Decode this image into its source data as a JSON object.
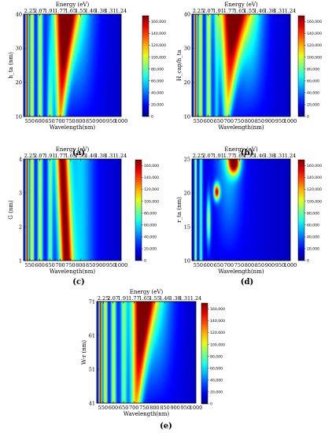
{
  "chart_data": [
    {
      "type": "heatmap",
      "panel": "(a)",
      "ylabel": "h_ta (nm)",
      "xlabel": "Wavelength(nm)",
      "x2label": "Energy (eV)",
      "xlim": [
        520,
        1000
      ],
      "ylim": [
        10,
        40
      ],
      "xticks": [
        550,
        600,
        650,
        700,
        750,
        800,
        850,
        900,
        950,
        1000
      ],
      "yticks": [
        10,
        20,
        30,
        40
      ],
      "energy_ticks": [
        "2.25",
        "2.07",
        "1.91",
        "1.77",
        "1.65",
        "1.55",
        "1.46",
        "1.38",
        "1.31",
        "1.24"
      ],
      "colorbar_ticks": [
        "0",
        "20,000",
        "40,000",
        "60,000",
        "80,000",
        "100,000",
        "120,000",
        "140,000",
        "160,000"
      ],
      "zmax": 170000,
      "peak_wavelength_nm": [
        720,
        740
      ]
    },
    {
      "type": "heatmap",
      "panel": "(b)",
      "ylabel": "H_cap/h_ta",
      "xlabel": "Wavelength(nm)",
      "x2label": "Energy (eV)",
      "xlim": [
        520,
        1000
      ],
      "ylim": [
        10,
        40
      ],
      "xticks": [
        550,
        600,
        650,
        700,
        750,
        800,
        850,
        900,
        950,
        1000
      ],
      "yticks": [
        10,
        20,
        30,
        40
      ],
      "energy_ticks": [
        "2.25",
        "2.07",
        "1.91",
        "1.77",
        "1.65",
        "1.55",
        "1.46",
        "1.38",
        "1.31",
        "1.24"
      ],
      "colorbar_ticks": [
        "0",
        "20,000",
        "40,000",
        "60,000",
        "80,000",
        "100,000",
        "120,000",
        "140,000",
        "160,000"
      ],
      "zmax": 170000,
      "peak_wavelength_nm": [
        720,
        700
      ]
    },
    {
      "type": "heatmap",
      "panel": "(c)",
      "ylabel": "G (nm)",
      "xlabel": "Wavelength(nm)",
      "x2label": "Energy (eV)",
      "xlim": [
        520,
        1000
      ],
      "ylim": [
        1,
        4
      ],
      "xticks": [
        550,
        600,
        650,
        700,
        750,
        800,
        850,
        900,
        950,
        1000
      ],
      "yticks": [
        1,
        2,
        3,
        4
      ],
      "energy_ticks": [
        "2.25",
        "2.07",
        "1.91",
        "1.77",
        "1.65",
        "1.55",
        "1.46",
        "1.38",
        "1.31",
        "1.24"
      ],
      "colorbar_ticks": [
        "0",
        "20,000",
        "40,000",
        "60,000",
        "80,000",
        "100,000",
        "120,000",
        "140,000",
        "160,000"
      ],
      "zmax": 170000,
      "peak_wavelength_nm": [
        715,
        715
      ]
    },
    {
      "type": "heatmap",
      "panel": "(d)",
      "ylabel": "r_ta (nm)",
      "xlabel": "Wavelength(nm)",
      "x2label": "Energy (eV)",
      "xlim": [
        520,
        1000
      ],
      "ylim": [
        10,
        25
      ],
      "xticks": [
        550,
        600,
        650,
        700,
        750,
        800,
        850,
        900,
        950,
        1000
      ],
      "yticks": [
        10,
        15,
        20,
        25
      ],
      "energy_ticks": [
        "2.25",
        "2.07",
        "1.91",
        "1.77",
        "1.65",
        "1.55",
        "1.46",
        "1.38",
        "1.31",
        "1.24"
      ],
      "colorbar_ticks": [
        "0",
        "20,000",
        "40,000",
        "60,000",
        "80,000",
        "100,000",
        "120,000",
        "140,000",
        "160,000"
      ],
      "zmax": 170000,
      "peak_wavelength_nm": [
        730,
        640
      ]
    },
    {
      "type": "heatmap",
      "panel": "(e)",
      "ylabel": "W-r (nm)",
      "xlabel": "Wavelength(nm)",
      "x2label": "Energy (eV)",
      "xlim": [
        520,
        1000
      ],
      "ylim": [
        41,
        71
      ],
      "xticks": [
        550,
        600,
        650,
        700,
        750,
        800,
        850,
        900,
        950,
        1000
      ],
      "yticks": [
        41,
        51,
        61,
        71
      ],
      "energy_ticks": [
        "2.25",
        "2.07",
        "1.91",
        "1.77",
        "1.65",
        "1.55",
        "1.46",
        "1.38",
        "1.31",
        "1.24"
      ],
      "colorbar_ticks": [
        "0",
        "20,000",
        "40,000",
        "60,000",
        "80,000",
        "100,000",
        "120,000",
        "140,000",
        "160,000"
      ],
      "zmax": 170000,
      "peak_wavelength_nm": [
        740,
        710
      ]
    }
  ]
}
